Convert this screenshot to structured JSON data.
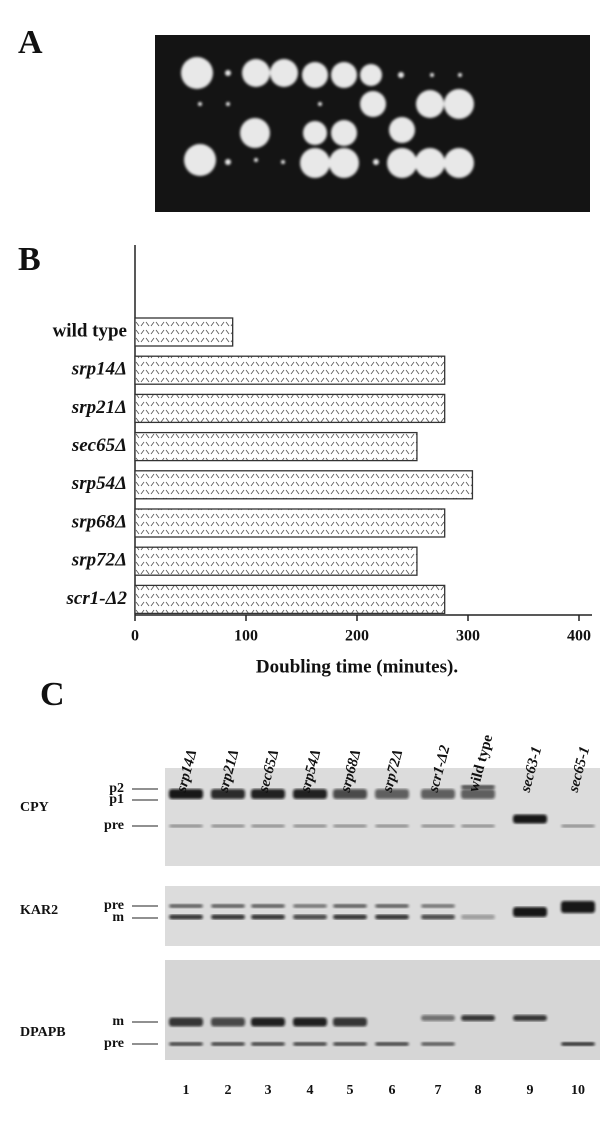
{
  "panel_a": {
    "label": "A"
  },
  "chart_data": {
    "type": "bar",
    "orientation": "horizontal",
    "label": "B",
    "categories": [
      "wild type",
      "srp14Δ",
      "srp21Δ",
      "sec65Δ",
      "srp54Δ",
      "srp68Δ",
      "srp72Δ",
      "scr1-Δ2"
    ],
    "values": [
      88,
      279,
      279,
      254,
      304,
      279,
      254,
      279
    ],
    "color": "#ffffff",
    "xlabel": "Doubling time (minutes).",
    "xlim": [
      0,
      400
    ],
    "xticks": [
      0,
      100,
      200,
      300,
      400
    ],
    "grid": false
  },
  "panel_c": {
    "label": "C",
    "lanes": [
      "srp14Δ",
      "srp21Δ",
      "sec65Δ",
      "srp54Δ",
      "srp68Δ",
      "srp72Δ",
      "scr1-Δ2",
      "wild type",
      "sec63-1",
      "sec65-1"
    ],
    "lane_numbers": [
      "1",
      "2",
      "3",
      "4",
      "5",
      "6",
      "7",
      "8",
      "9",
      "10"
    ],
    "blots": [
      {
        "name": "CPY",
        "bands": [
          "p2",
          "p1",
          "pre"
        ]
      },
      {
        "name": "KAR2",
        "bands": [
          "pre",
          "m"
        ]
      },
      {
        "name": "DPAPB",
        "bands": [
          "m",
          "pre"
        ]
      }
    ]
  }
}
